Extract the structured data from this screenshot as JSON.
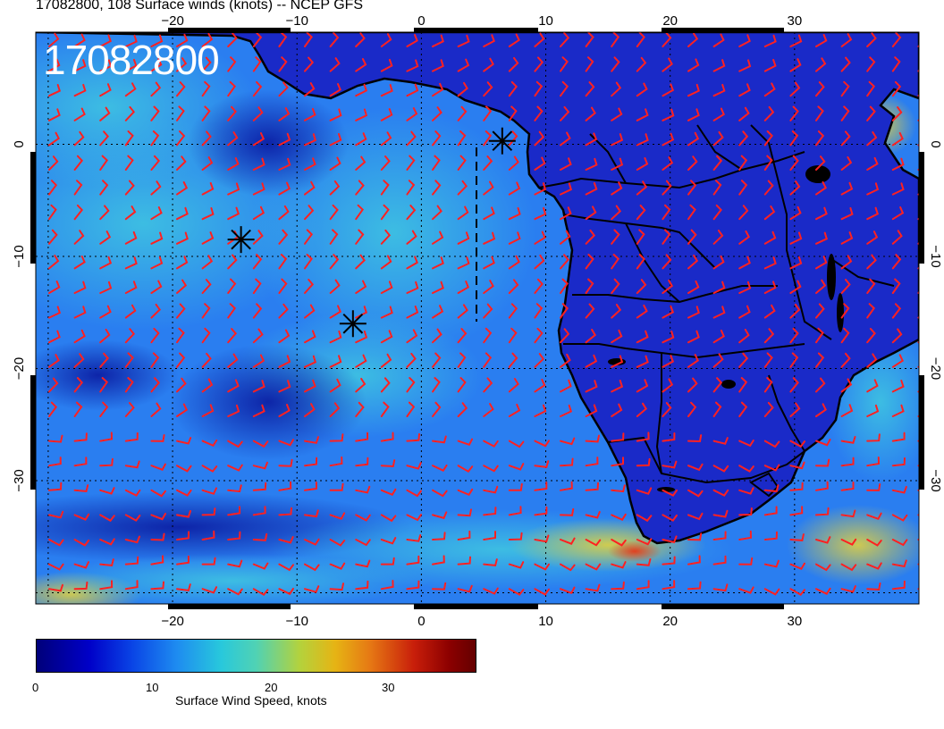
{
  "header": {
    "title": "17082800, 108 Surface winds (knots) -- NCEP GFS"
  },
  "map": {
    "stamp": "17082800",
    "lon_ticks": [
      "−20",
      "−10",
      "0",
      "10",
      "20",
      "30"
    ],
    "lat_ticks": [
      "0",
      "−10",
      "−20",
      "−30"
    ],
    "lon_range": [
      -31,
      40
    ],
    "lat_range": [
      -41,
      10
    ],
    "markers": [
      {
        "name": "storm-marker-1",
        "lon": -14.5,
        "lat": -8.5
      },
      {
        "name": "storm-marker-2",
        "lon": -5.5,
        "lat": -16.0
      },
      {
        "name": "storm-marker-3",
        "lon": 6.5,
        "lat": 0.3
      }
    ],
    "barb_color": "#ff2020",
    "coast_color": "#000000"
  },
  "colorbar": {
    "title": "Surface Wind Speed, knots",
    "ticks": [
      "0",
      "10",
      "20",
      "30"
    ],
    "range": [
      0,
      36
    ],
    "colors": [
      "#00007a",
      "#0000c8",
      "#1e8cf0",
      "#28c8dc",
      "#b4d23c",
      "#e67814",
      "#c81e0a",
      "#640000"
    ]
  }
}
